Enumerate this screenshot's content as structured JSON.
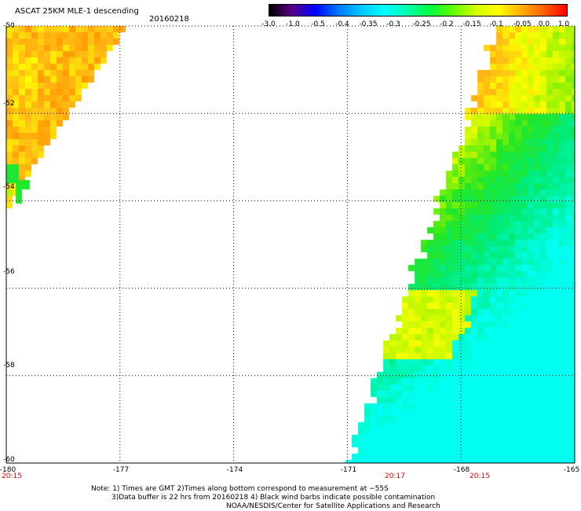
{
  "header": {
    "title": "ASCAT 25KM MLE-1 descending",
    "date": "20160218"
  },
  "colorbar": {
    "labels": [
      "-3.0",
      "-1.0",
      "-0.5",
      "-0.4",
      "-0.35",
      "-0.3",
      "-0.25",
      "-0.2",
      "-0.15",
      "-0.1",
      "-0.05",
      "0.0",
      "1.0"
    ],
    "colors": [
      "#000000",
      "#5a008a",
      "#0000ff",
      "#0077ff",
      "#00c8ff",
      "#00ffff",
      "#00ffb0",
      "#00ff40",
      "#60ff00",
      "#d0ff00",
      "#ffff00",
      "#ffb000",
      "#ff6000",
      "#ff0000"
    ]
  },
  "axes": {
    "lat_labels": [
      "-50",
      "-52",
      "-54",
      "-56",
      "-58",
      "-60"
    ],
    "lon_labels": [
      "-180",
      "-177",
      "-174",
      "-171",
      "-168",
      "-165"
    ],
    "time_labels": [
      {
        "text": "20:15",
        "lon": -180
      },
      {
        "text": "20:17",
        "lon": -169.8
      },
      {
        "text": "20:15",
        "lon": -166.9
      }
    ]
  },
  "notes": {
    "line1": "Note: 1) Times are GMT 2)Times along bottom correspond to measurement at −55S",
    "line2": "3)Data buffer is 22 hrs from 20160218 4) Black wind barbs indicate possible contamination",
    "line3": "NOAA/NESDIS/Center for Satellite Applications and Research"
  },
  "map": {
    "lon_range": [
      -180,
      -165
    ],
    "lat_range": [
      -60,
      -50
    ],
    "grid": "dotted"
  }
}
